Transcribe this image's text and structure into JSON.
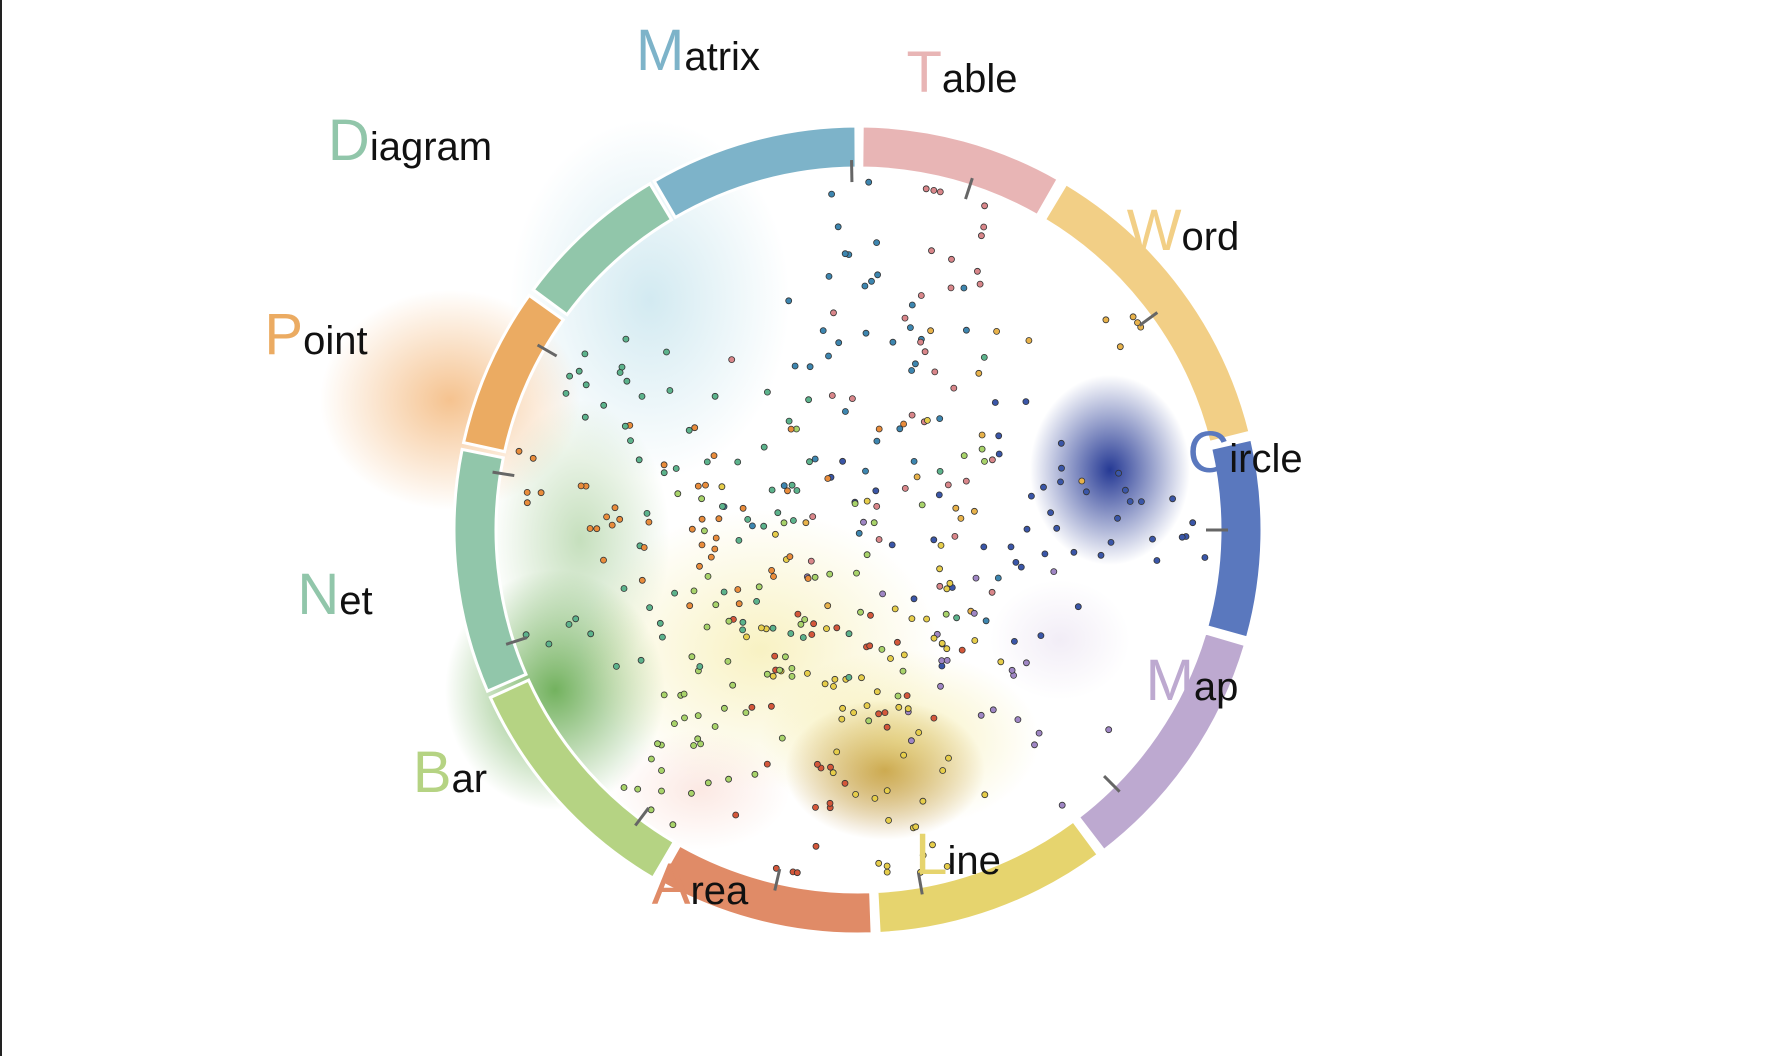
{
  "diagram": {
    "categories": [
      {
        "id": "matrix",
        "initial": "M",
        "rest": "atrix",
        "color": "#7db3c9"
      },
      {
        "id": "table",
        "initial": "T",
        "rest": "able",
        "color": "#e8b5b5"
      },
      {
        "id": "word",
        "initial": "W",
        "rest": "ord",
        "color": "#f2cf86"
      },
      {
        "id": "circle",
        "initial": "C",
        "rest": "ircle",
        "color": "#5a78be"
      },
      {
        "id": "map",
        "initial": "M",
        "rest": "ap",
        "color": "#bda9d0"
      },
      {
        "id": "line",
        "initial": "L",
        "rest": "ine",
        "color": "#e6d46e"
      },
      {
        "id": "area",
        "initial": "A",
        "rest": "rea",
        "color": "#e08b67"
      },
      {
        "id": "bar",
        "initial": "B",
        "rest": "ar",
        "color": "#b5d383"
      },
      {
        "id": "net",
        "initial": "N",
        "rest": "et",
        "color": "#91c6aa"
      },
      {
        "id": "point",
        "initial": "P",
        "rest": "oint",
        "color": "#ebab62"
      },
      {
        "id": "diagram",
        "initial": "D",
        "rest": "iagram",
        "color": "#91c6aa"
      }
    ],
    "density_colors": {
      "matrix": "#9cd0e0",
      "point": "#f0a253",
      "bar": "#5aa442",
      "line": "#b07c1a",
      "circle": "#1a2f8f",
      "area": "#f7c7b9",
      "yellow": "#f0e27a",
      "map": "#d9cbe6"
    },
    "point_colors": {
      "matrix": "#3d86b0",
      "table": "#d9868a",
      "word": "#e8b24a",
      "circle": "#3a56a8",
      "map": "#9f86c4",
      "line": "#e6cd4a",
      "area": "#d4573a",
      "bar": "#a8d36a",
      "net": "#5cb38c",
      "point": "#e98c3b",
      "diagram": "#5cb38c"
    }
  }
}
